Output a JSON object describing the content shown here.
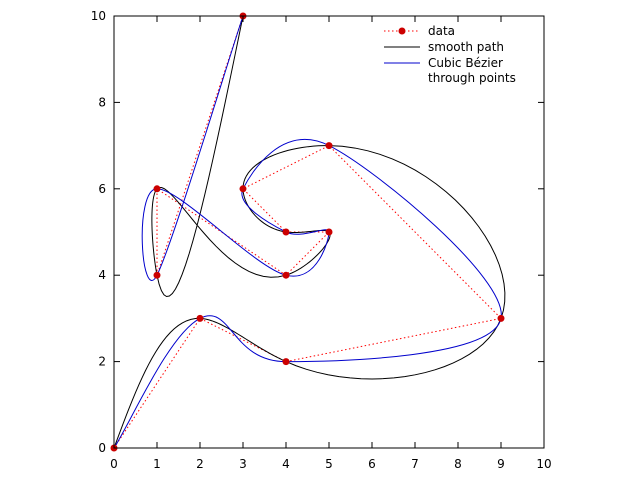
{
  "chart_data": {
    "type": "line",
    "xlim": [
      0,
      10
    ],
    "ylim": [
      0,
      10
    ],
    "x_ticks": [
      "0",
      "1",
      "2",
      "3",
      "4",
      "5",
      "6",
      "7",
      "8",
      "9",
      "10"
    ],
    "y_ticks": [
      "0",
      "2",
      "4",
      "6",
      "8",
      "10"
    ],
    "grid": false,
    "legend_position": "top-right",
    "points": [
      [
        0,
        0
      ],
      [
        2,
        3
      ],
      [
        4,
        2
      ],
      [
        9,
        3
      ],
      [
        5,
        7
      ],
      [
        3,
        6
      ],
      [
        4,
        5
      ],
      [
        5,
        5
      ],
      [
        4,
        4
      ],
      [
        1,
        6
      ],
      [
        1,
        4
      ],
      [
        3,
        10
      ]
    ],
    "series": [
      {
        "name": "data",
        "style": "dotted line with points",
        "color": "#ff0000",
        "marker_color": "#cc0000"
      },
      {
        "name": "smooth path",
        "style": "solid line",
        "color": "#000000"
      },
      {
        "name": "Cubic Bézier",
        "name_line2": "through points",
        "style": "solid line",
        "color": "#0000cc"
      }
    ]
  }
}
